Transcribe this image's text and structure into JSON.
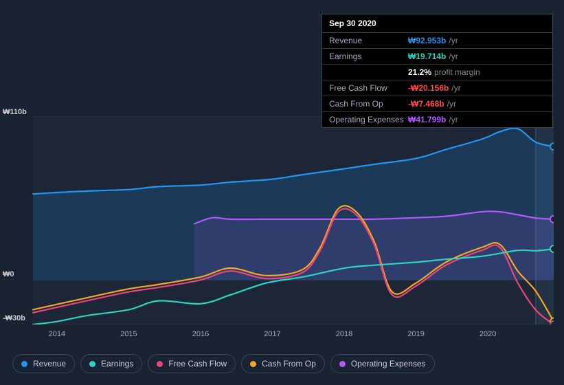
{
  "chart": {
    "type": "line-area",
    "background_color": "#1a2332",
    "plot_background_color": "#212d3e",
    "grid_color": "#2a3648",
    "ylim": [
      -30,
      110
    ],
    "y_ticks": [
      {
        "value": 110,
        "label": "₩110b"
      },
      {
        "value": 0,
        "label": "₩0"
      },
      {
        "value": -30,
        "label": "-₩30b"
      }
    ],
    "x_domain": [
      "2013-09",
      "2020-12"
    ],
    "x_ticks": [
      "2014",
      "2015",
      "2016",
      "2017",
      "2018",
      "2019",
      "2020"
    ],
    "highlight_band": {
      "from": "2020-09",
      "to": "2020-12",
      "fill": "#2a3a52"
    },
    "series": [
      {
        "id": "revenue",
        "label": "Revenue",
        "color": "#2196f3",
        "area": true,
        "area_opacity": 0.18,
        "points": [
          [
            "2013-09",
            58
          ],
          [
            "2014-01",
            59
          ],
          [
            "2014-06",
            60
          ],
          [
            "2015-01",
            61
          ],
          [
            "2015-06",
            63
          ],
          [
            "2016-01",
            64
          ],
          [
            "2016-06",
            66
          ],
          [
            "2017-01",
            68
          ],
          [
            "2017-06",
            71
          ],
          [
            "2018-01",
            75
          ],
          [
            "2018-06",
            78
          ],
          [
            "2019-01",
            82
          ],
          [
            "2019-06",
            88
          ],
          [
            "2019-12",
            95
          ],
          [
            "2020-03",
            100
          ],
          [
            "2020-06",
            102
          ],
          [
            "2020-09",
            92.95
          ],
          [
            "2020-12",
            90
          ]
        ]
      },
      {
        "id": "operating_expenses",
        "label": "Operating Expenses",
        "color": "#b558ff",
        "area": true,
        "area_opacity": 0.12,
        "points": [
          [
            "2015-12",
            38
          ],
          [
            "2016-03",
            42
          ],
          [
            "2016-06",
            41
          ],
          [
            "2017-01",
            41
          ],
          [
            "2017-06",
            41
          ],
          [
            "2018-01",
            41
          ],
          [
            "2018-06",
            41
          ],
          [
            "2019-01",
            42
          ],
          [
            "2019-06",
            43
          ],
          [
            "2019-12",
            46
          ],
          [
            "2020-03",
            46
          ],
          [
            "2020-06",
            44
          ],
          [
            "2020-09",
            41.8
          ],
          [
            "2020-12",
            41
          ]
        ]
      },
      {
        "id": "cash_from_op",
        "label": "Cash From Op",
        "color": "#f5a623",
        "area": false,
        "points": [
          [
            "2013-09",
            -20
          ],
          [
            "2014-06",
            -12
          ],
          [
            "2015-01",
            -6
          ],
          [
            "2015-06",
            -3
          ],
          [
            "2016-01",
            2
          ],
          [
            "2016-06",
            8
          ],
          [
            "2016-12",
            3
          ],
          [
            "2017-06",
            7
          ],
          [
            "2017-09",
            22
          ],
          [
            "2017-12",
            48
          ],
          [
            "2018-03",
            46
          ],
          [
            "2018-06",
            26
          ],
          [
            "2018-09",
            -8
          ],
          [
            "2019-01",
            -2
          ],
          [
            "2019-06",
            12
          ],
          [
            "2019-12",
            22
          ],
          [
            "2020-03",
            24
          ],
          [
            "2020-06",
            6
          ],
          [
            "2020-09",
            -7.5
          ],
          [
            "2020-12",
            -28
          ]
        ]
      },
      {
        "id": "free_cash_flow",
        "label": "Free Cash Flow",
        "color": "#e8467a",
        "area": false,
        "points": [
          [
            "2013-09",
            -22
          ],
          [
            "2014-06",
            -14
          ],
          [
            "2015-01",
            -8
          ],
          [
            "2015-06",
            -5
          ],
          [
            "2016-01",
            0
          ],
          [
            "2016-06",
            6
          ],
          [
            "2016-12",
            1
          ],
          [
            "2017-06",
            5
          ],
          [
            "2017-09",
            20
          ],
          [
            "2017-12",
            46
          ],
          [
            "2018-03",
            44
          ],
          [
            "2018-06",
            24
          ],
          [
            "2018-09",
            -10
          ],
          [
            "2019-01",
            -4
          ],
          [
            "2019-06",
            10
          ],
          [
            "2019-12",
            20
          ],
          [
            "2020-03",
            22
          ],
          [
            "2020-06",
            -2
          ],
          [
            "2020-09",
            -20.2
          ],
          [
            "2020-12",
            -30
          ]
        ]
      },
      {
        "id": "earnings",
        "label": "Earnings",
        "color": "#2ad4c0",
        "area": false,
        "points": [
          [
            "2013-09",
            -30
          ],
          [
            "2014-01",
            -28
          ],
          [
            "2014-06",
            -24
          ],
          [
            "2015-01",
            -20
          ],
          [
            "2015-06",
            -14
          ],
          [
            "2016-01",
            -16
          ],
          [
            "2016-06",
            -10
          ],
          [
            "2016-12",
            -2
          ],
          [
            "2017-06",
            2
          ],
          [
            "2018-01",
            8
          ],
          [
            "2018-06",
            10
          ],
          [
            "2019-01",
            12
          ],
          [
            "2019-06",
            14
          ],
          [
            "2019-12",
            16
          ],
          [
            "2020-06",
            20
          ],
          [
            "2020-09",
            19.7
          ],
          [
            "2020-12",
            21
          ]
        ]
      }
    ]
  },
  "tooltip": {
    "date": "Sep 30 2020",
    "rows": [
      {
        "label": "Revenue",
        "value": "₩92.953b",
        "suffix": "/yr",
        "color": "#2196f3"
      },
      {
        "label": "Earnings",
        "value": "₩19.714b",
        "suffix": "/yr",
        "color": "#2ad4c0"
      },
      {
        "label": "",
        "value": "21.2%",
        "suffix": "profit margin",
        "color": "#ffffff"
      },
      {
        "label": "Free Cash Flow",
        "value": "-₩20.156b",
        "suffix": "/yr",
        "color": "#ff4d4d"
      },
      {
        "label": "Cash From Op",
        "value": "-₩7.468b",
        "suffix": "/yr",
        "color": "#ff4d4d"
      },
      {
        "label": "Operating Expenses",
        "value": "₩41.799b",
        "suffix": "/yr",
        "color": "#b558ff"
      }
    ]
  },
  "legend": [
    {
      "id": "revenue",
      "label": "Revenue",
      "color": "#2196f3"
    },
    {
      "id": "earnings",
      "label": "Earnings",
      "color": "#2ad4c0"
    },
    {
      "id": "free_cash_flow",
      "label": "Free Cash Flow",
      "color": "#e8467a"
    },
    {
      "id": "cash_from_op",
      "label": "Cash From Op",
      "color": "#f5a623"
    },
    {
      "id": "operating_expenses",
      "label": "Operating Expenses",
      "color": "#b558ff"
    }
  ]
}
